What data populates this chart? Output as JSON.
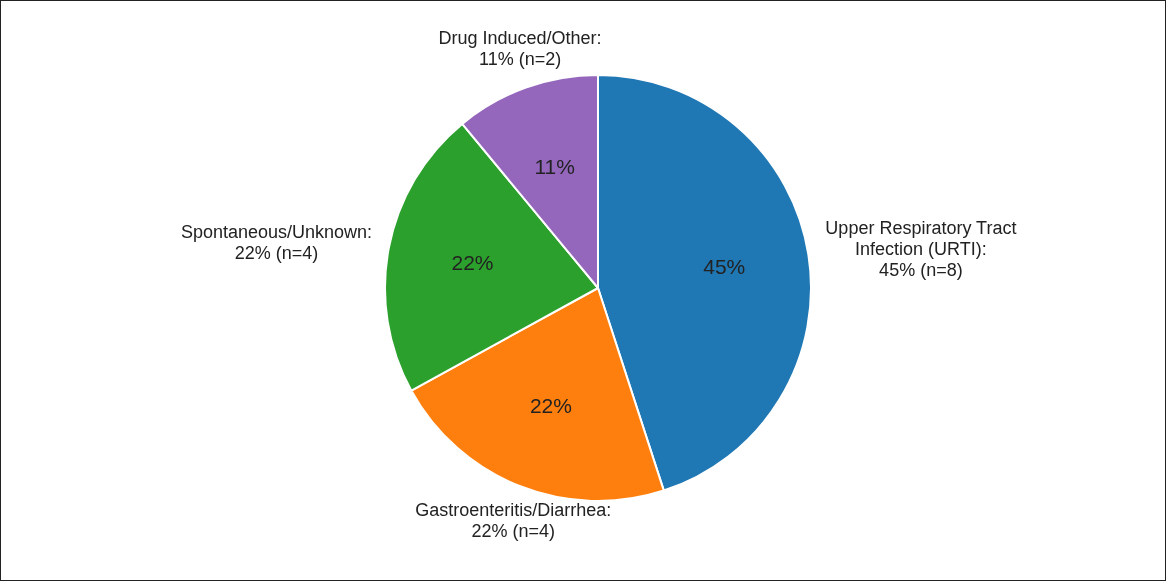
{
  "chart_data": {
    "type": "pie",
    "categories": [
      "Upper Respiratory Tract\nInfection (URTI):\n45% (n=8)",
      "Gastroenteritis/Diarrhea:\n22% (n=4)",
      "Spontaneous/Unknown:\n22% (n=4)",
      "Drug Induced/Other:\n11% (n=2)"
    ],
    "values": [
      45,
      22,
      22,
      11
    ],
    "value_labels": [
      "45%",
      "22%",
      "22%",
      "11%"
    ],
    "colors": [
      "#1f77b4",
      "#ff7f0e",
      "#2ca02c",
      "#9467bd"
    ],
    "legend": false
  }
}
